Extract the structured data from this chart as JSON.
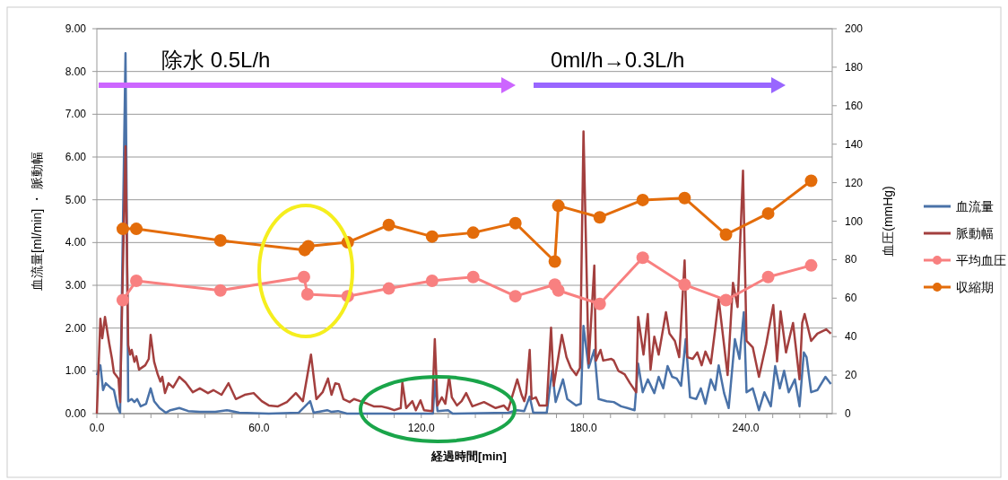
{
  "chart_data": {
    "type": "line",
    "xlabel": "経過時間[min]",
    "ylabel": "血流量[ml/min] ・ 脈動幅",
    "y2label": "血圧(mmHg)",
    "xlim": [
      0,
      272
    ],
    "xticks": [
      {
        "value": 0,
        "label": "0.0"
      },
      {
        "value": 10,
        "label": null
      },
      {
        "value": 20,
        "label": null
      },
      {
        "value": 30,
        "label": null
      },
      {
        "value": 40,
        "label": null
      },
      {
        "value": 50,
        "label": null
      },
      {
        "value": 60,
        "label": "60.0"
      },
      {
        "value": 70,
        "label": null
      },
      {
        "value": 80,
        "label": null
      },
      {
        "value": 90,
        "label": null
      },
      {
        "value": 100,
        "label": null
      },
      {
        "value": 110,
        "label": null
      },
      {
        "value": 120,
        "label": "120.0"
      },
      {
        "value": 130,
        "label": null
      },
      {
        "value": 140,
        "label": null
      },
      {
        "value": 150,
        "label": null
      },
      {
        "value": 160,
        "label": null
      },
      {
        "value": 170,
        "label": null
      },
      {
        "value": 180,
        "label": "180.0"
      },
      {
        "value": 190,
        "label": null
      },
      {
        "value": 200,
        "label": null
      },
      {
        "value": 210,
        "label": null
      },
      {
        "value": 220,
        "label": null
      },
      {
        "value": 230,
        "label": null
      },
      {
        "value": 240,
        "label": "240.0"
      },
      {
        "value": 250,
        "label": null
      },
      {
        "value": 260,
        "label": null
      },
      {
        "value": 270,
        "label": null
      }
    ],
    "ylim": [
      0,
      9
    ],
    "yticks": [
      {
        "value": 0,
        "label": "0.00"
      },
      {
        "value": 1,
        "label": "1.00"
      },
      {
        "value": 2,
        "label": "2.00"
      },
      {
        "value": 3,
        "label": "3.00"
      },
      {
        "value": 4,
        "label": "4.00"
      },
      {
        "value": 5,
        "label": "5.00"
      },
      {
        "value": 6,
        "label": "6.00"
      },
      {
        "value": 7,
        "label": "7.00"
      },
      {
        "value": 8,
        "label": "8.00"
      },
      {
        "value": 9,
        "label": "9.00"
      }
    ],
    "y2lim": [
      0,
      200
    ],
    "y2ticks": [
      0,
      20,
      40,
      60,
      80,
      100,
      120,
      140,
      160,
      180,
      200
    ],
    "grid": "y",
    "legend": "right",
    "annotations": [
      "除水 0.5L/h",
      "0ml/h→0.3L/h"
    ],
    "series": [
      {
        "name": "血流量",
        "color": "#4a72a8",
        "marker": "none",
        "x": [
          0,
          1.3,
          2.3,
          3.3,
          5.0,
          6.3,
          7.6,
          8.6,
          10.6,
          11.6,
          12.9,
          13.9,
          14.9,
          16.2,
          18.2,
          19.9,
          21.2,
          23.2,
          25.5,
          27.2,
          30.5,
          33.8,
          38.1,
          43.8,
          48.1,
          52.7,
          63.6,
          74.6,
          78.9,
          80.2,
          85.2,
          86.8,
          89.2,
          92.5,
          124.3,
          125.0,
          126.0,
          129.9,
          131.6,
          152.1,
          155.5,
          158.1,
          160.1,
          161.4,
          166.4,
          168.4,
          169.7,
          172.4,
          174.0,
          177.3,
          179.0,
          180.0,
          181.9,
          184.0,
          185.6,
          188.6,
          191.2,
          193.9,
          196.2,
          198.9,
          200.2,
          201.9,
          203.8,
          206.2,
          207.8,
          209.5,
          211.1,
          212.8,
          214.5,
          216.1,
          217.8,
          219.4,
          221.7,
          223.4,
          225.1,
          227.1,
          228.7,
          230.0,
          232.0,
          233.7,
          236.0,
          237.7,
          239.3,
          240.3,
          242.6,
          244.9,
          246.9,
          249.3,
          250.9,
          252.6,
          254.2,
          255.9,
          258.2,
          259.9,
          261.5,
          262.5,
          264.2,
          266.5,
          269.5,
          271.5
        ],
        "values": [
          0.9,
          1.13,
          0.55,
          0.71,
          0.61,
          0.55,
          0.17,
          0.02,
          8.43,
          0.29,
          0.34,
          0.27,
          0.34,
          0.17,
          0.23,
          0.59,
          0.29,
          0.13,
          0.02,
          0.08,
          0.13,
          0.06,
          0.04,
          0.04,
          0.08,
          0.02,
          0,
          0.02,
          0.29,
          0.02,
          0.08,
          0.04,
          0.06,
          0,
          0,
          0.75,
          0.06,
          0.08,
          0,
          0.02,
          0.08,
          0.06,
          0.4,
          0.02,
          0.02,
          1.0,
          0.27,
          0.8,
          0.34,
          0.19,
          0.23,
          2.05,
          1.07,
          1.49,
          0.34,
          0.29,
          0.27,
          0.17,
          0.13,
          0.08,
          1.17,
          0.5,
          0.8,
          0.48,
          0.86,
          0.59,
          1.11,
          0.86,
          0.82,
          0.65,
          1.74,
          0.38,
          0.34,
          0.59,
          0.23,
          0.8,
          0.55,
          1.13,
          0.48,
          0.13,
          1.74,
          1.28,
          2.37,
          0.5,
          0.59,
          0.08,
          0.5,
          0.17,
          1.11,
          0.59,
          1.0,
          0.5,
          0.8,
          0.17,
          1.43,
          1.32,
          0.5,
          0.55,
          0.86,
          0.69
        ]
      },
      {
        "name": "脈動幅",
        "color": "#a33f3e",
        "marker": "none",
        "x": [
          0,
          1.3,
          2.0,
          3.0,
          4.6,
          5.6,
          6.3,
          8.0,
          8.6,
          10.6,
          11.6,
          12.3,
          12.9,
          13.9,
          14.6,
          15.6,
          17.9,
          19.2,
          19.9,
          21.2,
          22.5,
          23.5,
          24.2,
          25.2,
          26.5,
          28.2,
          30.5,
          32.8,
          35.5,
          38.1,
          41.1,
          43.1,
          46.1,
          48.7,
          51.4,
          54.7,
          58.0,
          61.0,
          63.6,
          67.0,
          70.3,
          73.6,
          76.2,
          79.2,
          81.2,
          83.5,
          85.5,
          86.8,
          88.2,
          89.5,
          91.2,
          93.5,
          95.1,
          97.4,
          100.1,
          102.4,
          105.1,
          107.7,
          110.0,
          112.4,
          113.0,
          114.4,
          116.7,
          118.0,
          119.7,
          121.0,
          124.0,
          125.0,
          126.0,
          127.6,
          128.9,
          130.3,
          131.3,
          133.2,
          134.9,
          136.6,
          138.9,
          143.2,
          147.5,
          150.5,
          152.1,
          155.5,
          157.1,
          158.1,
          158.8,
          160.1,
          160.8,
          162.4,
          163.7,
          166.4,
          168.0,
          169.0,
          172.0,
          173.7,
          175.3,
          177.3,
          178.7,
          180.0,
          181.9,
          184.0,
          184.6,
          186.3,
          187.3,
          190.3,
          191.2,
          192.9,
          195.2,
          197.2,
          199.5,
          200.2,
          202.2,
          203.8,
          204.8,
          206.2,
          207.8,
          210.5,
          211.8,
          213.8,
          215.4,
          217.4,
          218.4,
          220.4,
          222.1,
          223.7,
          225.1,
          227.1,
          228.7,
          230.0,
          233.3,
          235.3,
          237.0,
          239.0,
          240.3,
          242.6,
          244.9,
          247.6,
          250.2,
          251.6,
          252.9,
          254.9,
          257.5,
          259.9,
          260.9,
          261.8,
          264.2,
          266.5,
          269.8,
          271.5
        ],
        "values": [
          0,
          2.22,
          1.76,
          2.26,
          1.63,
          1.28,
          0.96,
          0.82,
          0.27,
          6.25,
          1.6,
          1.38,
          1.49,
          1.21,
          1.34,
          1.03,
          1.13,
          1.28,
          1.84,
          1.21,
          0.92,
          0.75,
          0.86,
          0.48,
          0.71,
          0.61,
          0.86,
          0.73,
          0.5,
          0.59,
          0.48,
          0.55,
          0.44,
          0.71,
          0.34,
          0.44,
          0.48,
          0.29,
          0.19,
          0.17,
          0.27,
          0.48,
          0.29,
          1.38,
          0.34,
          0.5,
          0.82,
          0.44,
          0.71,
          0.69,
          0.34,
          0.27,
          0.34,
          0.29,
          0.23,
          0.17,
          0.17,
          0.13,
          0.08,
          0.13,
          0.73,
          0.13,
          0.29,
          0.08,
          0.31,
          0.08,
          0.06,
          1.74,
          0.19,
          0.38,
          0.23,
          0.86,
          0.38,
          0.19,
          0.29,
          0.48,
          0.17,
          0.27,
          0.13,
          0.19,
          0.08,
          0.8,
          0.44,
          0.29,
          0.48,
          1.49,
          0.34,
          0.38,
          0.19,
          0.19,
          2.01,
          0.65,
          1.84,
          1.32,
          1.07,
          0.9,
          1.07,
          6.6,
          1.17,
          3.46,
          1.24,
          1.49,
          1.24,
          1.28,
          1.24,
          1.0,
          0.92,
          0.71,
          0.5,
          2.26,
          1.38,
          2.33,
          1.03,
          1.8,
          1.38,
          2.37,
          1.87,
          1.7,
          1.32,
          3.58,
          1.32,
          1.28,
          1.43,
          1.13,
          1.45,
          1.17,
          1.97,
          2.68,
          0.9,
          3.06,
          2.49,
          5.68,
          1.7,
          1.55,
          0.86,
          1.63,
          2.54,
          1.22,
          2.39,
          1.43,
          2.12,
          0.8,
          2.12,
          2.33,
          1.7,
          1.87,
          1.97,
          1.87
        ]
      },
      {
        "name": "平均血圧",
        "color": "#f88080",
        "marker": "circle",
        "axis": "y2",
        "x": [
          9.6,
          14.6,
          45.7,
          76.6,
          77.9,
          92.8,
          108.0,
          124.0,
          139.2,
          154.8,
          169.4,
          170.7,
          186.0,
          201.9,
          217.4,
          232.7,
          248.3,
          264.2
        ],
        "values": [
          59,
          69,
          64,
          71,
          62,
          61,
          65,
          69,
          71,
          61,
          67,
          64,
          57,
          81,
          67,
          59,
          71,
          77
        ]
      },
      {
        "name": "収縮期",
        "color": "#e36c0a",
        "marker": "circle",
        "axis": "y2",
        "x": [
          9.6,
          14.6,
          45.7,
          76.9,
          78.2,
          92.8,
          108.0,
          124.0,
          139.2,
          154.8,
          169.4,
          170.7,
          186.0,
          201.9,
          217.4,
          232.7,
          248.3,
          264.2
        ],
        "values": [
          96,
          96,
          90,
          85,
          87,
          89,
          98,
          92,
          94,
          99,
          79,
          108,
          102,
          111,
          112,
          93,
          104,
          121
        ]
      }
    ]
  }
}
